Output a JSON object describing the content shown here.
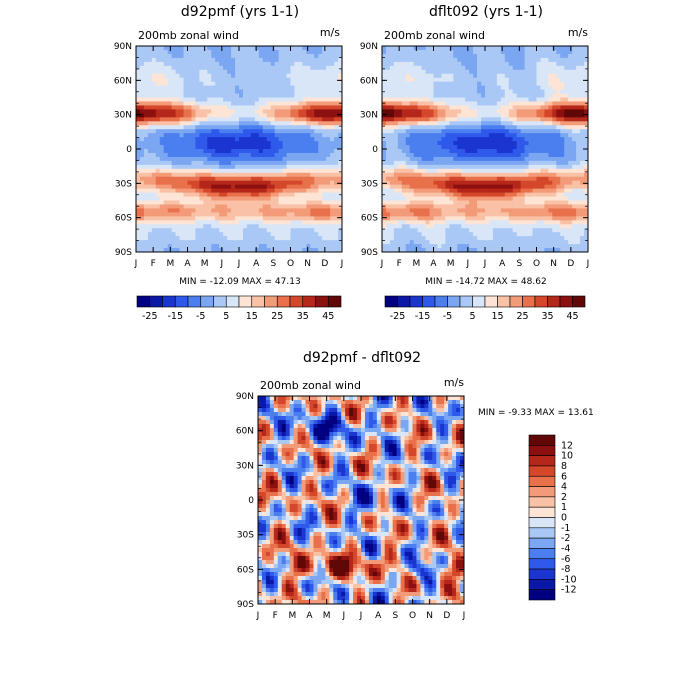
{
  "chart_data": [
    {
      "type": "heatmap",
      "title": "d92pmf (yrs 1-1)",
      "subtitle_left": "200mb zonal wind",
      "subtitle_right": "m/s",
      "x_tick_labels": [
        "J",
        "F",
        "M",
        "A",
        "M",
        "J",
        "J",
        "A",
        "S",
        "O",
        "N",
        "D",
        "J"
      ],
      "y_tick_labels": [
        "90N",
        "60N",
        "30N",
        "0",
        "30S",
        "60S",
        "90S"
      ],
      "y_values": [
        90,
        60,
        30,
        0,
        -30,
        -60,
        -90
      ],
      "min": -12.09,
      "max": 47.13,
      "minmax_text": "MIN = -12.09 MAX = 47.13",
      "colorbar_levels": [
        -25,
        -20,
        -15,
        -10,
        -5,
        0,
        5,
        10,
        15,
        20,
        25,
        30,
        35,
        40,
        45
      ],
      "colorbar_labels": [
        "-25",
        "-15",
        "-5",
        "5",
        "15",
        "25",
        "35",
        "45"
      ],
      "jets": [
        {
          "feature": "NH subtropical jet",
          "lat": 30,
          "peak": "Jan/Dec"
        },
        {
          "feature": "SH jet",
          "lat": -30,
          "peak": "Jul"
        },
        {
          "feature": "SH polar jet",
          "lat": -55
        },
        {
          "feature": "Tropical easterlies",
          "lat": 5,
          "peak": "Jul"
        }
      ]
    },
    {
      "type": "heatmap",
      "title": "dflt092 (yrs 1-1)",
      "subtitle_left": "200mb zonal wind",
      "subtitle_right": "m/s",
      "x_tick_labels": [
        "J",
        "F",
        "M",
        "A",
        "M",
        "J",
        "J",
        "A",
        "S",
        "O",
        "N",
        "D",
        "J"
      ],
      "y_tick_labels": [
        "90N",
        "60N",
        "30N",
        "0",
        "30S",
        "60S",
        "90S"
      ],
      "y_values": [
        90,
        60,
        30,
        0,
        -30,
        -60,
        -90
      ],
      "min": -14.72,
      "max": 48.62,
      "minmax_text": "MIN = -14.72 MAX = 48.62",
      "colorbar_levels": [
        -25,
        -20,
        -15,
        -10,
        -5,
        0,
        5,
        10,
        15,
        20,
        25,
        30,
        35,
        40,
        45
      ],
      "colorbar_labels": [
        "-25",
        "-15",
        "-5",
        "5",
        "15",
        "25",
        "35",
        "45"
      ]
    },
    {
      "type": "heatmap",
      "title": "d92pmf - dflt092",
      "subtitle_left": "200mb zonal wind",
      "subtitle_right": "m/s",
      "x_tick_labels": [
        "J",
        "F",
        "M",
        "A",
        "M",
        "J",
        "J",
        "A",
        "S",
        "O",
        "N",
        "D",
        "J"
      ],
      "y_tick_labels": [
        "90N",
        "60N",
        "30N",
        "0",
        "30S",
        "60S",
        "90S"
      ],
      "y_values": [
        90,
        60,
        30,
        0,
        -30,
        -60,
        -90
      ],
      "min": -9.33,
      "max": 13.61,
      "minmax_text": "MIN = -9.33 MAX = 13.61",
      "colorbar_levels": [
        12,
        10,
        8,
        6,
        4,
        2,
        1,
        0,
        -1,
        -2,
        -4,
        -6,
        -8,
        -10,
        -12
      ],
      "colorbar_labels": [
        "12",
        "10",
        "8",
        "6",
        "4",
        "2",
        "1",
        "0",
        "-1",
        "-2",
        "-4",
        "-6",
        "-8",
        "-10",
        "-12"
      ]
    }
  ],
  "palette": [
    "#000080",
    "#0a18a8",
    "#1a35d0",
    "#2f59ea",
    "#4b7ff0",
    "#7ba6f2",
    "#aac8f5",
    "#d8e6f8",
    "#fde4d4",
    "#f9c1a6",
    "#f39a78",
    "#e8704b",
    "#d4472a",
    "#b5271a",
    "#8c1010",
    "#600808"
  ]
}
